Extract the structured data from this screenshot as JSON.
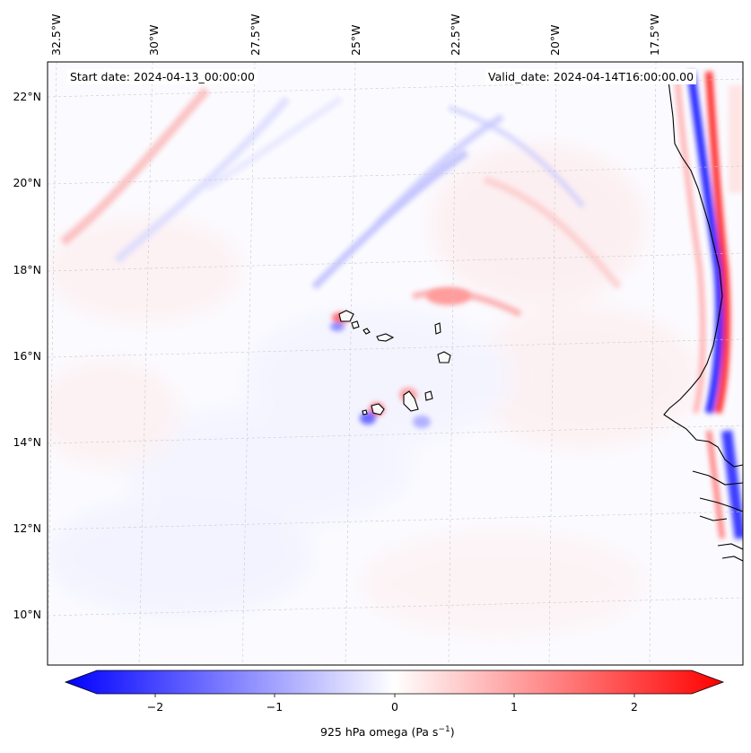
{
  "header": {
    "start_date": "Start date: 2024-04-13_00:00:00",
    "valid_date": "Valid_date: 2024-04-14T16:00:00.00"
  },
  "map": {
    "longitude_labels": [
      "32.5°W",
      "30°W",
      "27.5°W",
      "25°W",
      "22.5°W",
      "20°W",
      "17.5°W"
    ],
    "latitude_labels": [
      "22°N",
      "20°N",
      "18°N",
      "16°N",
      "14°N",
      "12°N",
      "10°N"
    ],
    "field": "925 hPa omega",
    "positive_color": "#ff0000",
    "negative_color": "#0000ff",
    "zero_color": "#ffffff"
  },
  "colorbar": {
    "ticks": [
      "−2",
      "−1",
      "0",
      "1",
      "2"
    ],
    "label": "925 hPa omega (Pa s",
    "label_unit_sup": "−1",
    "label_close": ")",
    "range": [
      -2.6,
      2.6
    ],
    "extend": "both"
  }
}
